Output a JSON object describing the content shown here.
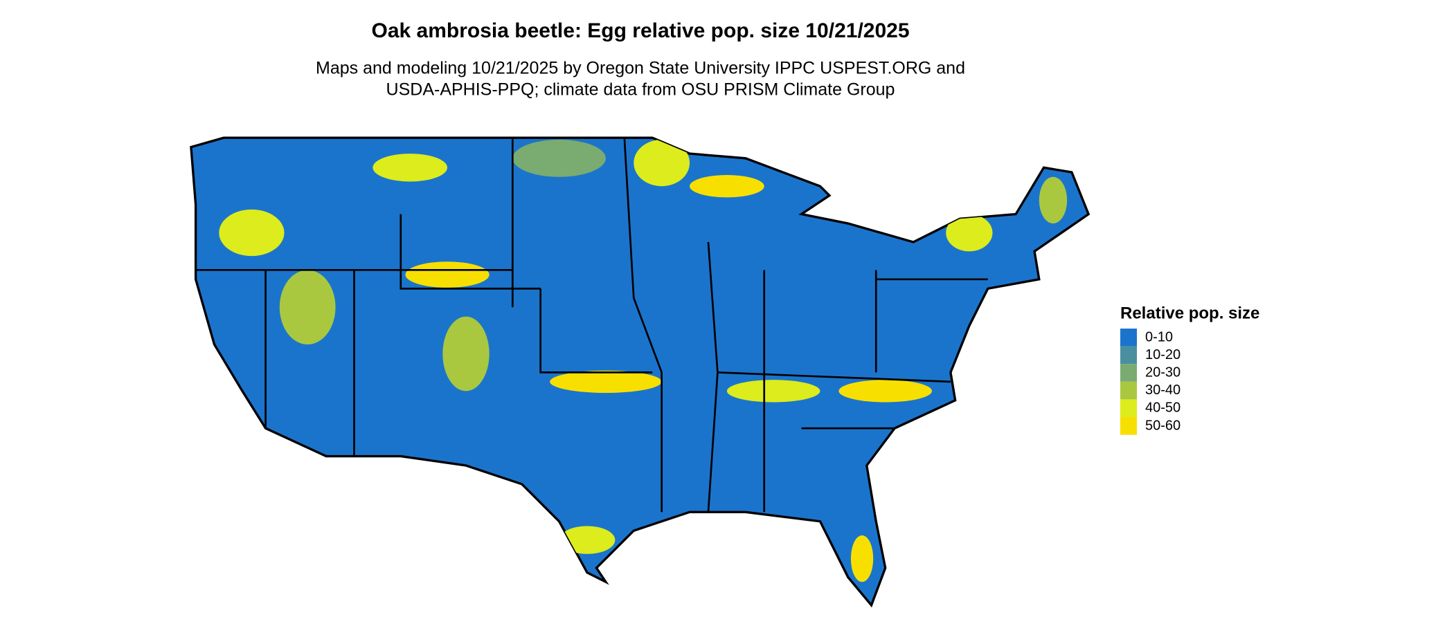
{
  "title": "Oak ambrosia beetle: Egg relative pop. size 10/21/2025",
  "subtitle": [
    "Maps and modeling 10/21/2025 by Oregon State University IPPC USPEST.ORG and",
    "USDA-APHIS-PPQ; climate data from OSU PRISM Climate Group"
  ],
  "legend": {
    "title": "Relative pop. size",
    "items": [
      {
        "label": "0-10",
        "color": "#1b74cc"
      },
      {
        "label": "10-20",
        "color": "#4a8fa0"
      },
      {
        "label": "20-30",
        "color": "#7aab70"
      },
      {
        "label": "30-40",
        "color": "#a9c840"
      },
      {
        "label": "40-50",
        "color": "#dcec1c"
      },
      {
        "label": "50-60",
        "color": "#f7e000"
      }
    ]
  }
}
